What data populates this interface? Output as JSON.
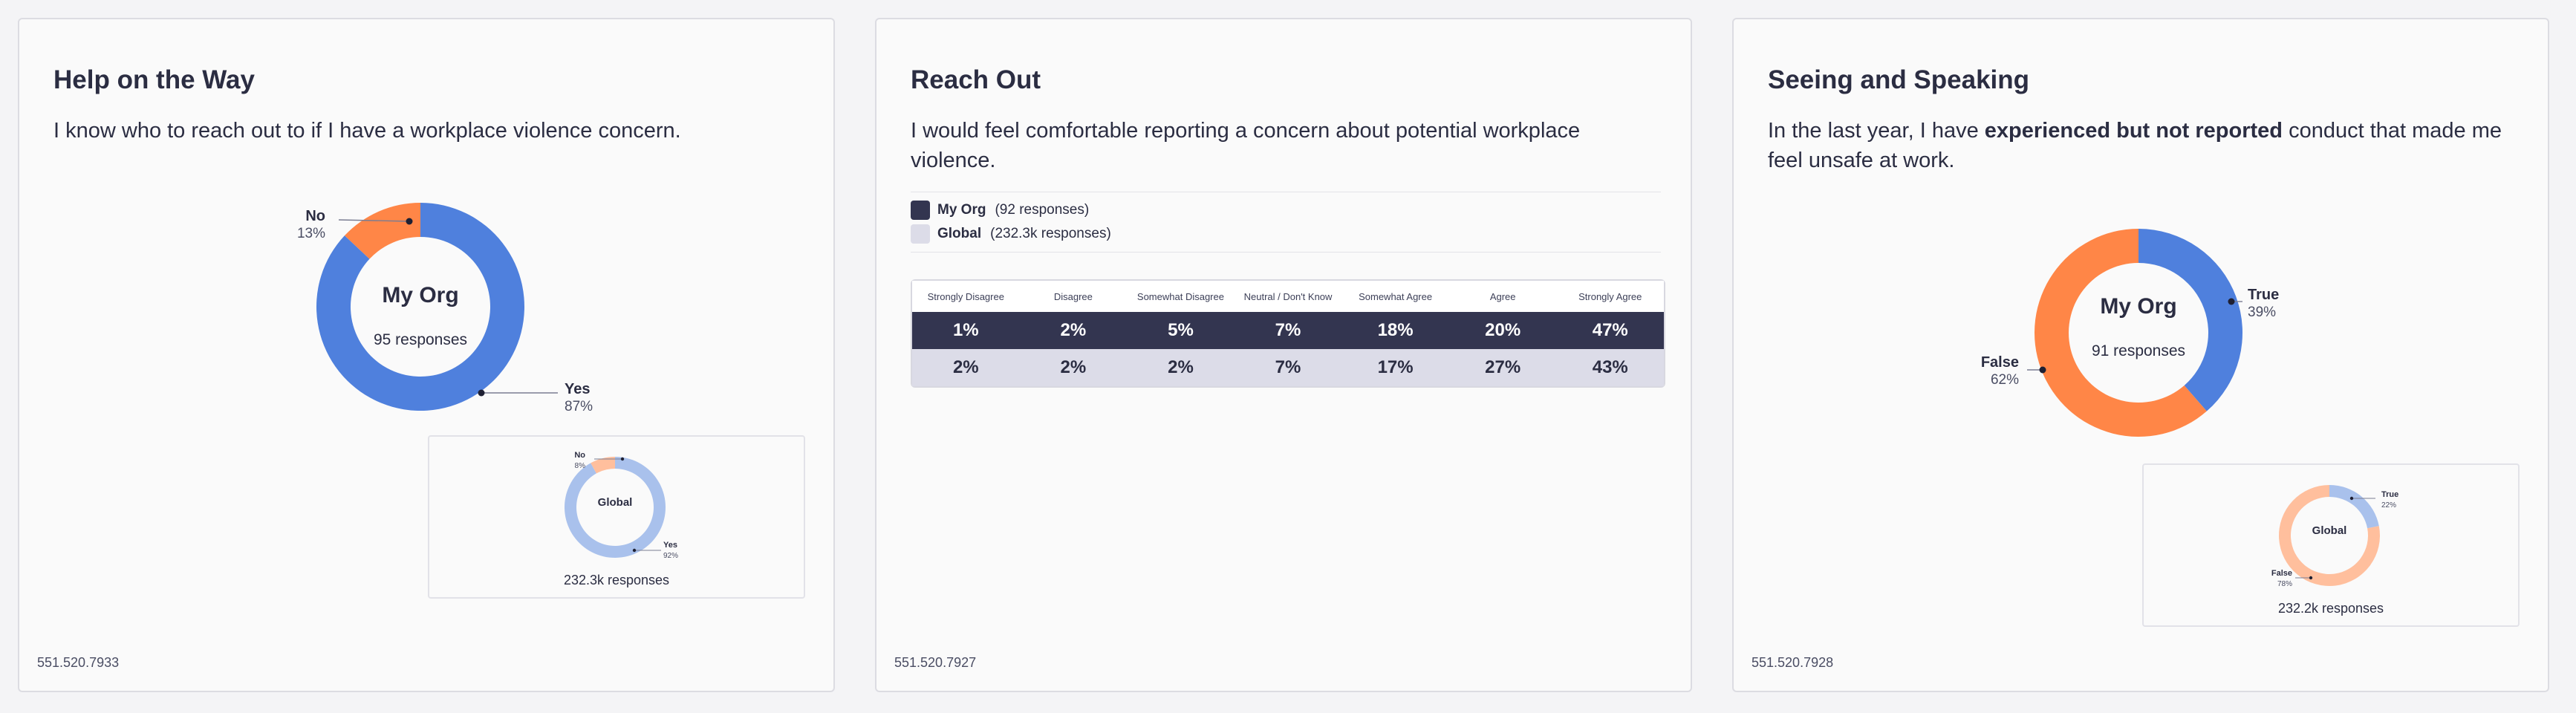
{
  "colors": {
    "primary": "#4f80dd",
    "secondary": "#ff8647",
    "primary_light": "#a9c1ec",
    "secondary_light": "#ffbf9d",
    "org_dark": "#333550",
    "global_light": "#dcdce8"
  },
  "cards": [
    {
      "title": "Help on the Way",
      "question": "I know who to reach out to if I have a workplace violence concern.",
      "id_code": "551.520.7933",
      "org": {
        "center_label": "My Org",
        "responses": "95 responses"
      },
      "global": {
        "center_label": "Global",
        "responses": "232.3k responses"
      }
    },
    {
      "title": "Reach Out",
      "question": "I would feel comfortable reporting a concern about potential workplace violence.",
      "id_code": "551.520.7927",
      "legend": [
        {
          "name": "My Org",
          "count": "(92 responses)",
          "color": "#333550"
        },
        {
          "name": "Global",
          "count": "(232.3k responses)",
          "color": "#dcdce8"
        }
      ]
    },
    {
      "title": "Seeing and Speaking",
      "question_pre": "In the last year, I have ",
      "question_bold": "experienced but not reported",
      "question_post": " conduct that made me feel unsafe at work.",
      "id_code": "551.520.7928",
      "org": {
        "center_label": "My Org",
        "responses": "91 responses"
      },
      "global": {
        "center_label": "Global",
        "responses": "232.2k responses"
      }
    }
  ],
  "chart_data": [
    {
      "type": "pie",
      "title": "My Org",
      "categories": [
        "Yes",
        "No"
      ],
      "values": [
        87,
        13
      ],
      "labels": [
        "87%",
        "13%"
      ],
      "colors": [
        "#4f80dd",
        "#ff8647"
      ]
    },
    {
      "type": "pie",
      "title": "Global",
      "categories": [
        "Yes",
        "No"
      ],
      "values": [
        92,
        8
      ],
      "labels": [
        "92%",
        "8%"
      ],
      "colors": [
        "#a9c1ec",
        "#ffbf9d"
      ]
    },
    {
      "type": "table",
      "categories": [
        "Strongly Disagree",
        "Disagree",
        "Somewhat Disagree",
        "Neutral / Don't Know",
        "Somewhat Agree",
        "Agree",
        "Strongly Agree"
      ],
      "series": [
        {
          "name": "My Org",
          "values": [
            1,
            2,
            5,
            7,
            18,
            20,
            47
          ],
          "labels": [
            "1%",
            "2%",
            "5%",
            "7%",
            "18%",
            "20%",
            "47%"
          ]
        },
        {
          "name": "Global",
          "values": [
            2,
            2,
            2,
            7,
            17,
            27,
            43
          ],
          "labels": [
            "2%",
            "2%",
            "2%",
            "7%",
            "17%",
            "27%",
            "43%"
          ]
        }
      ]
    },
    {
      "type": "pie",
      "title": "My Org",
      "categories": [
        "True",
        "False"
      ],
      "values": [
        39,
        62
      ],
      "labels": [
        "39%",
        "62%"
      ],
      "colors": [
        "#4f80dd",
        "#ff8647"
      ]
    },
    {
      "type": "pie",
      "title": "Global",
      "categories": [
        "True",
        "False"
      ],
      "values": [
        22,
        78
      ],
      "labels": [
        "22%",
        "78%"
      ],
      "colors": [
        "#a9c1ec",
        "#ffbf9d"
      ]
    }
  ]
}
